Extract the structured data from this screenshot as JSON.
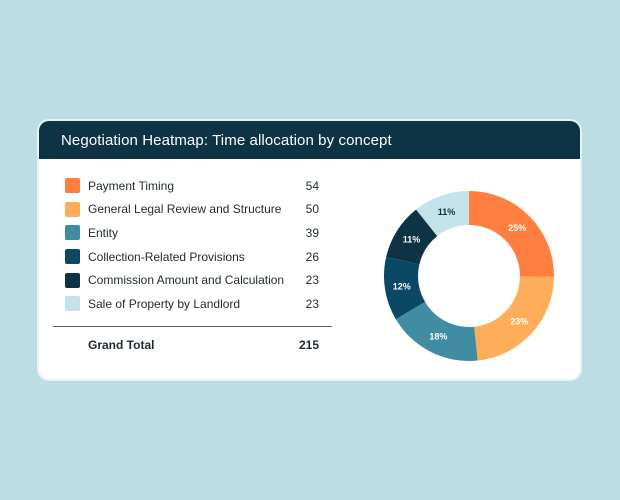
{
  "title": "Negotiation Heatmap: Time allocation by concept",
  "chart_data": {
    "type": "pie",
    "categories": [
      "Payment Timing",
      "General Legal Review and Structure",
      "Entity",
      "Collection-Related Provisions",
      "Commission Amount and Calculation",
      "Sale of Property by Landlord"
    ],
    "values": [
      54,
      50,
      39,
      26,
      23,
      23
    ],
    "slice_labels": [
      "25%",
      "23%",
      "18%",
      "12%",
      "11%",
      "11%"
    ],
    "colors": [
      "#fe7f40",
      "#feae5a",
      "#408da3",
      "#0a4866",
      "#0d3345",
      "#c3e2e9"
    ],
    "label_colors": [
      "#ffffff",
      "#ffffff",
      "#ffffff",
      "#ffffff",
      "#ffffff",
      "#0d3345"
    ],
    "donut": true
  },
  "total": {
    "label": "Grand Total",
    "value": "215"
  }
}
